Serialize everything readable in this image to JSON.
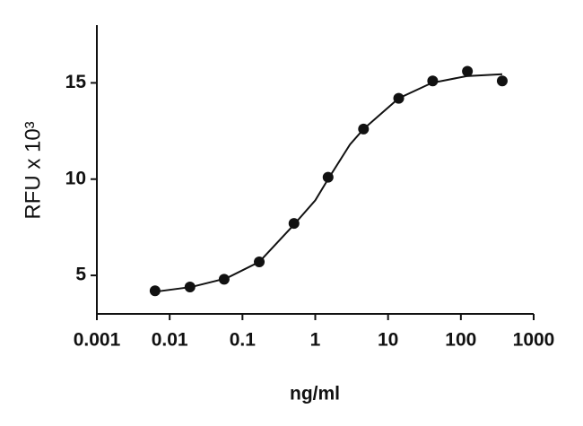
{
  "chart_data": {
    "type": "scatter",
    "x_label": "ng/ml",
    "y_label": "RFU x 10³",
    "xscale": "log",
    "xlim": [
      0.001,
      1000
    ],
    "xticks": [
      0.001,
      0.01,
      0.1,
      1,
      10,
      100,
      1000
    ],
    "ylim": [
      3,
      18
    ],
    "yticks": [
      5,
      10,
      15
    ],
    "series": [
      {
        "type": "scatter",
        "color": "#111111",
        "x": [
          0.0063,
          0.019,
          0.056,
          0.17,
          0.51,
          1.5,
          4.6,
          14,
          41,
          123,
          370
        ],
        "values": [
          4.2,
          4.4,
          4.8,
          5.7,
          7.7,
          10.1,
          12.6,
          14.2,
          15.1,
          15.6,
          15.1
        ]
      },
      {
        "type": "line",
        "color": "#111111",
        "x": [
          0.0063,
          0.02,
          0.06,
          0.17,
          0.5,
          1,
          1.5,
          3,
          4.6,
          14,
          40,
          120,
          370
        ],
        "values": [
          4.15,
          4.4,
          4.85,
          5.7,
          7.6,
          8.9,
          10.0,
          11.8,
          12.6,
          14.2,
          15.0,
          15.35,
          15.45
        ]
      }
    ]
  }
}
